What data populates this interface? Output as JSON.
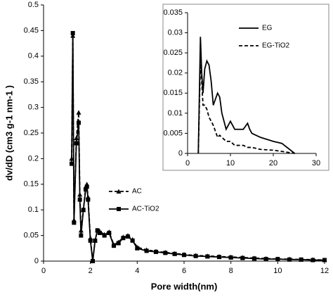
{
  "chart_data": [
    {
      "type": "line",
      "x_label": "Pore width(nm)",
      "y_label": "dv/dD (cm3 g-1 nm-1 )",
      "xlim": [
        0,
        12
      ],
      "xticks": [
        0,
        2,
        4,
        6,
        8,
        10,
        12
      ],
      "ylim": [
        0,
        0.5
      ],
      "yticks": [
        0,
        0.05,
        0.1,
        0.15,
        0.2,
        0.25,
        0.3,
        0.35,
        0.4,
        0.45,
        0.5
      ],
      "legend": "center left",
      "x": [
        1.2,
        1.25,
        1.3,
        1.4,
        1.5,
        1.55,
        1.6,
        1.7,
        1.8,
        1.85,
        1.9,
        2.0,
        2.1,
        2.2,
        2.3,
        2.4,
        2.6,
        2.8,
        3.0,
        3.2,
        3.4,
        3.6,
        3.8,
        4.0,
        4.4,
        4.8,
        5.2,
        5.6,
        6,
        6.5,
        7,
        7.5,
        8,
        8.5,
        9,
        9.5,
        10,
        10.5,
        11,
        11.5,
        12
      ],
      "series": [
        {
          "name": "AC",
          "color": "#000000",
          "dash": true,
          "marker": "triangle",
          "values": [
            0.2,
            0.44,
            0.08,
            0.24,
            0.29,
            0.13,
            0.06,
            0.1,
            0.145,
            0.15,
            0.125,
            0.045,
            0.0,
            0.04,
            0.06,
            0.058,
            0.052,
            0.057,
            0.032,
            0.037,
            0.047,
            0.05,
            0.042,
            0.027,
            0.022,
            0.019,
            0.017,
            0.015,
            0.013,
            0.011,
            0.01,
            0.009,
            0.008,
            0.007,
            0.006,
            0.005,
            0.004,
            0.004,
            0.003,
            0.003,
            0.002
          ]
        },
        {
          "name": "AC-TiO2",
          "color": "#000000",
          "dash": false,
          "marker": "square",
          "values": [
            0.19,
            0.445,
            0.075,
            0.23,
            0.27,
            0.12,
            0.05,
            0.1,
            0.14,
            0.145,
            0.12,
            0.04,
            0.0,
            0.04,
            0.06,
            0.055,
            0.05,
            0.055,
            0.03,
            0.035,
            0.045,
            0.048,
            0.04,
            0.025,
            0.02,
            0.018,
            0.016,
            0.014,
            0.012,
            0.01,
            0.009,
            0.008,
            0.007,
            0.006,
            0.005,
            0.004,
            0.004,
            0.003,
            0.003,
            0.002,
            0.002
          ]
        }
      ]
    },
    {
      "type": "line",
      "xlim": [
        0,
        30
      ],
      "xticks": [
        0,
        10,
        20,
        30
      ],
      "ylim": [
        0,
        0.035
      ],
      "yticks": [
        0,
        0.005,
        0.01,
        0.015,
        0.02,
        0.025,
        0.03,
        0.035
      ],
      "legend": "upper right",
      "x": [
        2.5,
        3,
        3.3,
        3.6,
        4,
        4.5,
        5,
        5.5,
        6,
        7,
        7.5,
        8,
        9,
        10,
        11,
        12,
        13,
        14,
        14.5,
        15,
        17,
        20,
        22,
        25
      ],
      "series": [
        {
          "name": "EG",
          "color": "#000000",
          "dash": false,
          "values": [
            0,
            0.029,
            0.02,
            0.015,
            0.021,
            0.023,
            0.022,
            0.018,
            0.012,
            0.015,
            0.014,
            0.01,
            0.006,
            0.008,
            0.006,
            0.006,
            0.006,
            0.0075,
            0.006,
            0.005,
            0.004,
            0.003,
            0.0025,
            0
          ]
        },
        {
          "name": "EG-TiO2",
          "color": "#000000",
          "dash": true,
          "values": [
            0,
            0.023,
            0.018,
            0.012,
            0.012,
            0.011,
            0.009,
            0.008,
            0.007,
            0.004,
            0.0045,
            0.004,
            0.003,
            0.003,
            0.002,
            0.002,
            0.002,
            0.0015,
            0.0015,
            0.0015,
            0.001,
            0.0008,
            0.0005,
            0
          ]
        }
      ]
    }
  ]
}
